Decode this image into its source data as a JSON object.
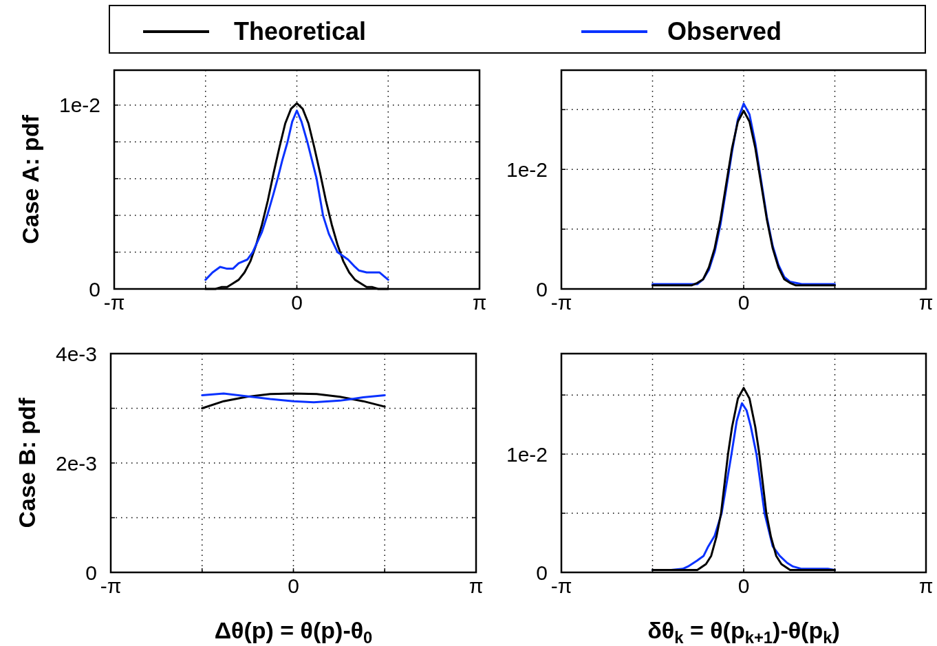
{
  "chart_data": [
    {
      "type": "line",
      "ylabel": "Case A: pdf",
      "legend": "top",
      "grid": true,
      "line_style": "solid",
      "xlim": [
        -3.1416,
        3.1416
      ],
      "xticks": [
        {
          "value": -3.1416,
          "label": "-π"
        },
        {
          "value": -1.5708,
          "label": null
        },
        {
          "value": 0,
          "label": "0"
        },
        {
          "value": 1.5708,
          "label": null
        },
        {
          "value": 3.1416,
          "label": "π"
        }
      ],
      "ylim": [
        0,
        0.0119
      ],
      "yticks": [
        {
          "value": 0,
          "label": "0"
        },
        {
          "value": 0.002,
          "label": null
        },
        {
          "value": 0.004,
          "label": null
        },
        {
          "value": 0.006,
          "label": null
        },
        {
          "value": 0.008,
          "label": null
        },
        {
          "value": 0.01,
          "label": "1e-2"
        }
      ],
      "series": [
        {
          "name": "Theoretical",
          "color": "#000000",
          "x": [
            -1.5708,
            -1.4,
            -1.3,
            -1.2,
            -1.1,
            -1.0,
            -0.9,
            -0.8,
            -0.7,
            -0.6,
            -0.5,
            -0.4,
            -0.3,
            -0.2,
            -0.1,
            0,
            0.1,
            0.2,
            0.3,
            0.4,
            0.5,
            0.6,
            0.7,
            0.8,
            0.9,
            1.0,
            1.1,
            1.2,
            1.3,
            1.4,
            1.5708
          ],
          "values": [
            0,
            0,
            0.0001,
            0.0001,
            0.0003,
            0.0005,
            0.0009,
            0.0015,
            0.0024,
            0.0035,
            0.0048,
            0.0063,
            0.0077,
            0.009,
            0.0098,
            0.0101,
            0.0098,
            0.009,
            0.0077,
            0.0063,
            0.0048,
            0.0035,
            0.0024,
            0.0015,
            0.0009,
            0.0005,
            0.0003,
            0.0001,
            0.0001,
            0,
            0
          ]
        },
        {
          "name": "Observed",
          "color": "#0a32ff",
          "x": [
            -1.5708,
            -1.45,
            -1.32,
            -1.2,
            -1.1,
            -1.0,
            -0.85,
            -0.76,
            -0.6,
            -0.5,
            -0.4,
            -0.33,
            -0.25,
            -0.16,
            -0.08,
            0,
            0.08,
            0.18,
            0.26,
            0.34,
            0.45,
            0.55,
            0.7,
            0.88,
            1.0,
            1.07,
            1.2,
            1.42,
            1.5708
          ],
          "values": [
            0.0005,
            0.0009,
            0.0012,
            0.0011,
            0.0011,
            0.0014,
            0.0016,
            0.002,
            0.0031,
            0.0041,
            0.0052,
            0.006,
            0.007,
            0.008,
            0.0091,
            0.0097,
            0.0091,
            0.008,
            0.007,
            0.006,
            0.004,
            0.003,
            0.002,
            0.0016,
            0.0012,
            0.001,
            0.0009,
            0.0009,
            0.0005
          ]
        }
      ]
    },
    {
      "type": "line",
      "grid": true,
      "line_style": "solid",
      "xlim": [
        -3.1416,
        3.1416
      ],
      "xticks": [
        {
          "value": -3.1416,
          "label": "-π"
        },
        {
          "value": -1.5708,
          "label": null
        },
        {
          "value": 0,
          "label": "0"
        },
        {
          "value": 1.5708,
          "label": null
        },
        {
          "value": 3.1416,
          "label": "π"
        }
      ],
      "ylim": [
        0,
        0.0183
      ],
      "yticks": [
        {
          "value": 0,
          "label": "0"
        },
        {
          "value": 0.005,
          "label": null
        },
        {
          "value": 0.01,
          "label": "1e-2"
        },
        {
          "value": 0.015,
          "label": null
        }
      ],
      "series": [
        {
          "color": "#0a32ff",
          "x": [
            -1.5708,
            -1.0,
            -0.8,
            -0.7,
            -0.6,
            -0.5,
            -0.4,
            -0.3,
            -0.2,
            -0.1,
            0,
            0.1,
            0.2,
            0.3,
            0.4,
            0.5,
            0.6,
            0.7,
            0.8,
            1.0,
            1.5708
          ],
          "values": [
            0.0004,
            0.0004,
            0.0004,
            0.0008,
            0.0016,
            0.0031,
            0.0054,
            0.0084,
            0.0115,
            0.0142,
            0.0155,
            0.0146,
            0.0122,
            0.0091,
            0.006,
            0.0036,
            0.002,
            0.001,
            0.0006,
            0.0004,
            0.0004
          ]
        },
        {
          "color": "#000000",
          "x": [
            -1.5708,
            -1.0,
            -0.9,
            -0.8,
            -0.7,
            -0.6,
            -0.5,
            -0.4,
            -0.3,
            -0.2,
            -0.1,
            0,
            0.1,
            0.2,
            0.3,
            0.4,
            0.5,
            0.6,
            0.7,
            0.8,
            0.9,
            1.0,
            1.5708
          ],
          "values": [
            0.0003,
            0.0003,
            0.0003,
            0.0005,
            0.0008,
            0.0018,
            0.0034,
            0.0058,
            0.0088,
            0.0118,
            0.014,
            0.0149,
            0.014,
            0.0118,
            0.0088,
            0.0058,
            0.0034,
            0.0018,
            0.0008,
            0.0005,
            0.0003,
            0.0003,
            0.0003
          ]
        }
      ]
    },
    {
      "type": "line",
      "ylabel": "Case B: pdf",
      "xlabel": "Δθ(p) = θ(p)-θ$_{0}$",
      "grid": true,
      "line_style": "solid",
      "xlim": [
        -3.1416,
        3.1416
      ],
      "xticks": [
        {
          "value": -3.1416,
          "label": "-π"
        },
        {
          "value": -1.5708,
          "label": null
        },
        {
          "value": 0,
          "label": "0"
        },
        {
          "value": 1.5708,
          "label": null
        },
        {
          "value": 3.1416,
          "label": "π"
        }
      ],
      "ylim": [
        0,
        0.004
      ],
      "yticks": [
        {
          "value": 0,
          "label": "0"
        },
        {
          "value": 0.001,
          "label": null
        },
        {
          "value": 0.002,
          "label": "2e-3"
        },
        {
          "value": 0.003,
          "label": null
        },
        {
          "value": 0.004,
          "label": "4e-3"
        }
      ],
      "series": [
        {
          "color": "#000000",
          "x": [
            -1.5708,
            -1.2,
            -0.8,
            -0.4,
            0,
            0.4,
            0.8,
            1.2,
            1.5708
          ],
          "values": [
            0.003,
            0.00313,
            0.00321,
            0.00326,
            0.00327,
            0.00326,
            0.00321,
            0.00313,
            0.00303
          ]
        },
        {
          "color": "#0a32ff",
          "x": [
            -1.5708,
            -1.2,
            -0.8,
            -0.4,
            0,
            0.35,
            0.8,
            1.2,
            1.5708
          ],
          "values": [
            0.00324,
            0.00327,
            0.00322,
            0.00317,
            0.00313,
            0.00311,
            0.00314,
            0.0032,
            0.00324
          ]
        }
      ]
    },
    {
      "type": "line",
      "xlabel": "δθ$_{k}$ = θ(p$_{k+1}$)-θ(p$_{k}$)",
      "grid": true,
      "line_style": "solid",
      "xlim": [
        -3.1416,
        3.1416
      ],
      "xticks": [
        {
          "value": -3.1416,
          "label": "-π"
        },
        {
          "value": -1.5708,
          "label": null
        },
        {
          "value": 0,
          "label": "0"
        },
        {
          "value": 1.5708,
          "label": null
        },
        {
          "value": 3.1416,
          "label": "π"
        }
      ],
      "ylim": [
        0,
        0.0185
      ],
      "yticks": [
        {
          "value": 0,
          "label": "0"
        },
        {
          "value": 0.005,
          "label": null
        },
        {
          "value": 0.01,
          "label": "1e-2"
        },
        {
          "value": 0.015,
          "label": null
        }
      ],
      "series": [
        {
          "color": "#0a32ff",
          "x": [
            -1.5708,
            -1.25,
            -1.05,
            -0.96,
            -0.8,
            -0.69,
            -0.61,
            -0.5,
            -0.38,
            -0.21,
            -0.12,
            -0.03,
            0.05,
            0.12,
            0.22,
            0.36,
            0.5,
            0.62,
            0.75,
            0.85,
            1.0,
            1.45,
            1.5708
          ],
          "values": [
            0.0002,
            0.0002,
            0.0003,
            0.0005,
            0.001,
            0.0014,
            0.0022,
            0.0031,
            0.005,
            0.01,
            0.0128,
            0.0143,
            0.0137,
            0.0124,
            0.01,
            0.005,
            0.0022,
            0.0014,
            0.0008,
            0.0005,
            0.0003,
            0.0003,
            0.0002
          ]
        },
        {
          "color": "#000000",
          "x": [
            -1.5708,
            -1.0,
            -0.8,
            -0.65,
            -0.56,
            -0.47,
            -0.39,
            -0.33,
            -0.27,
            -0.2,
            -0.1,
            0,
            0.1,
            0.2,
            0.27,
            0.33,
            0.39,
            0.47,
            0.56,
            0.65,
            0.8,
            1.0,
            1.5708
          ],
          "values": [
            0.0002,
            0.0002,
            0.0002,
            0.0007,
            0.0014,
            0.003,
            0.005,
            0.0075,
            0.01,
            0.0123,
            0.0147,
            0.0156,
            0.0147,
            0.0123,
            0.01,
            0.0075,
            0.005,
            0.003,
            0.0014,
            0.0007,
            0.0002,
            0.0002,
            0.0002
          ]
        }
      ]
    }
  ]
}
